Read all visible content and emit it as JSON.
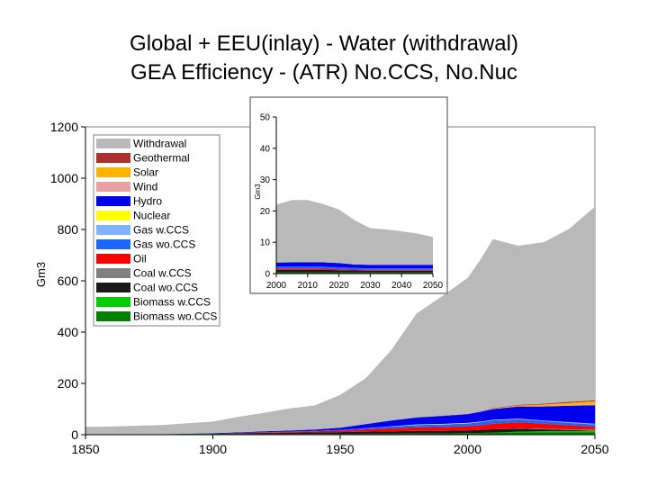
{
  "title": {
    "line1": "Global + EEU(inlay) - Water (withdrawal)",
    "line2": "GEA Efficiency - (ATR) No.CCS, No.Nuc"
  },
  "chart_data": [
    {
      "type": "area",
      "stacked": true,
      "ylabel": "Gm3",
      "xlim": [
        1850,
        2050
      ],
      "ylim": [
        0,
        1200
      ],
      "xticks": [
        1850,
        1900,
        1950,
        2000,
        2050
      ],
      "yticks": [
        0,
        200,
        400,
        600,
        800,
        1000,
        1200
      ],
      "legend_position": "top-left",
      "legend": [
        "Withdrawal",
        "Geothermal",
        "Solar",
        "Wind",
        "Hydro",
        "Nuclear",
        "Gas w.CCS",
        "Gas wo.CCS",
        "Oil",
        "Coal w.CCS",
        "Coal wo.CCS",
        "Biomass w.CCS",
        "Biomass wo.CCS"
      ],
      "x": [
        1850,
        1860,
        1870,
        1880,
        1890,
        1900,
        1910,
        1920,
        1930,
        1940,
        1950,
        1960,
        1970,
        1980,
        1990,
        2000,
        2005,
        2010,
        2020,
        2030,
        2040,
        2050
      ],
      "series": [
        {
          "name": "Biomass wo.CCS",
          "color": "#008000",
          "values": [
            2,
            2,
            2,
            2,
            3,
            3,
            3,
            3,
            3,
            3,
            3,
            4,
            4,
            5,
            5,
            6,
            7,
            8,
            10,
            10,
            10,
            10
          ]
        },
        {
          "name": "Biomass w.CCS",
          "color": "#00cc00",
          "values": [
            0,
            0,
            0,
            0,
            0,
            0,
            0,
            0,
            0,
            0,
            0,
            0,
            0,
            0,
            0,
            0,
            0,
            0,
            2,
            3,
            4,
            5
          ]
        },
        {
          "name": "Coal wo.CCS",
          "color": "#1a1a1a",
          "values": [
            0,
            0,
            0,
            0,
            1,
            2,
            3,
            4,
            5,
            6,
            7,
            8,
            9,
            10,
            10,
            11,
            12,
            13,
            12,
            8,
            4,
            2
          ]
        },
        {
          "name": "Coal w.CCS",
          "color": "#808080",
          "values": [
            0,
            0,
            0,
            0,
            0,
            0,
            0,
            0,
            0,
            0,
            0,
            0,
            0,
            0,
            0,
            0,
            0,
            0,
            1,
            2,
            3,
            3
          ]
        },
        {
          "name": "Oil",
          "color": "#ff0000",
          "values": [
            0,
            0,
            0,
            0,
            0,
            0,
            1,
            2,
            3,
            4,
            6,
            9,
            12,
            14,
            15,
            16,
            18,
            22,
            24,
            20,
            16,
            12
          ]
        },
        {
          "name": "Gas wo.CCS",
          "color": "#1a66ff",
          "values": [
            0,
            0,
            0,
            0,
            0,
            0,
            0,
            1,
            1,
            2,
            3,
            5,
            7,
            9,
            10,
            11,
            12,
            13,
            11,
            10,
            9,
            8
          ]
        },
        {
          "name": "Gas w.CCS",
          "color": "#80b3ff",
          "values": [
            0,
            0,
            0,
            0,
            0,
            0,
            0,
            0,
            0,
            0,
            0,
            0,
            0,
            0,
            0,
            0,
            0,
            0,
            1,
            2,
            3,
            3
          ]
        },
        {
          "name": "Nuclear",
          "color": "#ffff00",
          "values": [
            0,
            0,
            0,
            0,
            0,
            0,
            0,
            0,
            0,
            0,
            0,
            0,
            1,
            2,
            2,
            2,
            2,
            2,
            1,
            0,
            0,
            0
          ]
        },
        {
          "name": "Hydro",
          "color": "#0000ee",
          "values": [
            0,
            0,
            0,
            0,
            0,
            1,
            2,
            3,
            4,
            5,
            8,
            15,
            22,
            27,
            31,
            34,
            38,
            42,
            48,
            55,
            64,
            72
          ]
        },
        {
          "name": "Wind",
          "color": "#e8a0a0",
          "values": [
            0,
            0,
            0,
            0,
            0,
            0,
            0,
            0,
            0,
            0,
            0,
            0,
            0,
            0,
            0,
            0,
            0,
            1,
            1,
            2,
            2,
            3
          ]
        },
        {
          "name": "Solar",
          "color": "#ffb300",
          "values": [
            0,
            0,
            0,
            0,
            0,
            0,
            0,
            0,
            0,
            0,
            0,
            0,
            0,
            0,
            0,
            0,
            0,
            1,
            3,
            6,
            9,
            12
          ]
        },
        {
          "name": "Geothermal",
          "color": "#b03030",
          "values": [
            0,
            0,
            0,
            0,
            0,
            0,
            0,
            0,
            0,
            0,
            0,
            0,
            0,
            0,
            1,
            1,
            1,
            2,
            3,
            3,
            4,
            4
          ]
        },
        {
          "name": "Withdrawal",
          "color": "#b9b9b9",
          "values": [
            28,
            30,
            33,
            36,
            41,
            45,
            61,
            72,
            86,
            94,
            128,
            179,
            274,
            406,
            466,
            530,
            592,
            658,
            620,
            630,
            675,
            755
          ]
        }
      ]
    },
    {
      "type": "area",
      "stacked": true,
      "ylabel": "Gm3",
      "xlim": [
        2000,
        2050
      ],
      "ylim": [
        0,
        50
      ],
      "xticks": [
        2000,
        2010,
        2020,
        2030,
        2040,
        2050
      ],
      "yticks": [
        0,
        10,
        20,
        30,
        40,
        50
      ],
      "x": [
        2000,
        2005,
        2010,
        2015,
        2020,
        2025,
        2030,
        2035,
        2040,
        2045,
        2050
      ],
      "series": [
        {
          "name": "Biomass wo.CCS",
          "color": "#008000",
          "values": [
            0.4,
            0.4,
            0.4,
            0.4,
            0.4,
            0.4,
            0.4,
            0.4,
            0.4,
            0.4,
            0.4
          ]
        },
        {
          "name": "Coal wo.CCS",
          "color": "#1a1a1a",
          "values": [
            0.8,
            0.8,
            0.8,
            0.8,
            0.7,
            0.6,
            0.5,
            0.5,
            0.5,
            0.5,
            0.5
          ]
        },
        {
          "name": "Oil",
          "color": "#ff0000",
          "values": [
            0.4,
            0.4,
            0.4,
            0.4,
            0.3,
            0.3,
            0.3,
            0.3,
            0.3,
            0.3,
            0.3
          ]
        },
        {
          "name": "Gas wo.CCS",
          "color": "#1a66ff",
          "values": [
            0.6,
            0.6,
            0.6,
            0.6,
            0.6,
            0.5,
            0.5,
            0.5,
            0.5,
            0.5,
            0.5
          ]
        },
        {
          "name": "Hydro",
          "color": "#0000ee",
          "values": [
            1.3,
            1.4,
            1.4,
            1.4,
            1.4,
            1.1,
            1.1,
            1.1,
            1.1,
            1.1,
            1.1
          ]
        },
        {
          "name": "Withdrawal",
          "color": "#b9b9b9",
          "values": [
            18.5,
            19.9,
            19.9,
            18.6,
            17.1,
            14.1,
            11.7,
            11.3,
            10.7,
            10.0,
            8.9
          ]
        }
      ]
    }
  ]
}
